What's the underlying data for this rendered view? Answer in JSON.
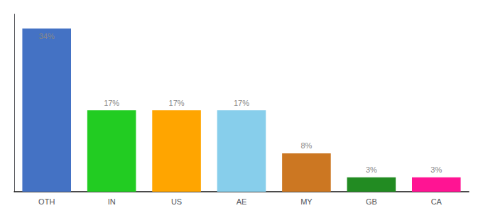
{
  "chart_data": {
    "type": "bar",
    "categories": [
      "OTH",
      "IN",
      "US",
      "AE",
      "MY",
      "GB",
      "CA"
    ],
    "values": [
      34,
      17,
      17,
      17,
      8,
      3,
      3
    ],
    "value_labels": [
      "34%",
      "17%",
      "17%",
      "17%",
      "8%",
      "3%",
      "3%"
    ],
    "colors": [
      "#4472C4",
      "#22CC22",
      "#FFA500",
      "#87CEEB",
      "#CC7722",
      "#228B22",
      "#FF1493"
    ],
    "ylim": [
      0,
      37
    ],
    "data_labels": true,
    "tick_labels": "x",
    "grid": false
  }
}
